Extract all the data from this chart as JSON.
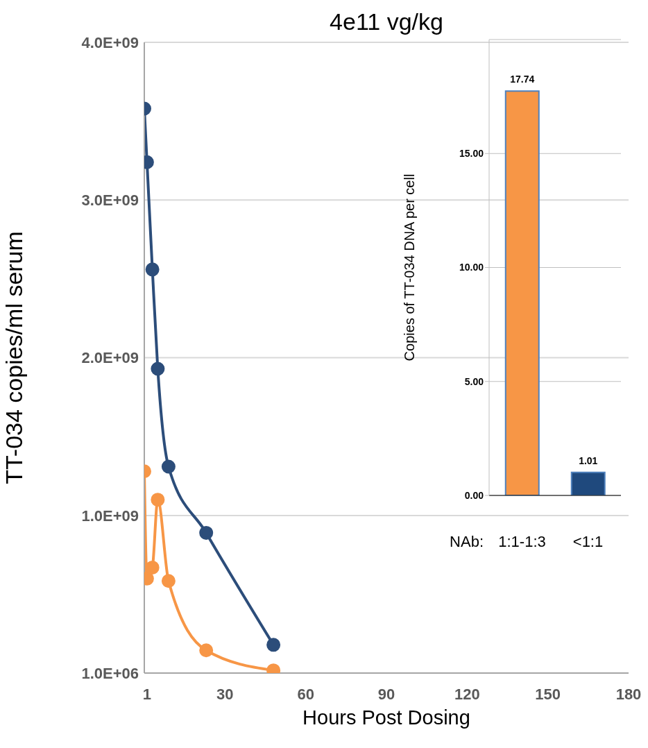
{
  "chart_data": [
    {
      "type": "line",
      "title": "4e11 vg/kg",
      "xlabel": "Hours Post Dosing",
      "ylabel": "TT-034 copies/ml serum",
      "x": [
        0,
        1,
        3,
        5,
        9,
        23,
        48
      ],
      "series": [
        {
          "color": "#2c4d7a",
          "values": [
            3580000000,
            3240000000,
            2560000000,
            1930000000,
            1310000000,
            890000000,
            180000000
          ]
        },
        {
          "color": "#f79646",
          "values": [
            1280000000,
            600000000,
            670000000,
            1100000000,
            585000000,
            145000000,
            18000000
          ]
        }
      ],
      "xlim": [
        0,
        180
      ],
      "xticks": [
        {
          "value": 1,
          "label": "1"
        },
        30,
        60,
        90,
        120,
        150,
        180
      ],
      "ylim": [
        1000000,
        4000000000
      ],
      "yticks": [
        {
          "value": 1000000,
          "label": "1.0E+06"
        },
        {
          "value": 1000000000,
          "label": "1.0E+09"
        },
        {
          "value": 2000000000,
          "label": "2.0E+09"
        },
        {
          "value": 3000000000,
          "label": "3.0E+09"
        },
        {
          "value": 4000000000,
          "label": "4.0E+09"
        }
      ],
      "grid": "y",
      "marker": "circle",
      "line_style": "solid"
    },
    {
      "type": "bar",
      "xlabel": "NAb:",
      "ylabel": "Copies of TT-034 DNA per cell",
      "categories": [
        "1:1-1:3",
        "<1:1"
      ],
      "values": [
        17.74,
        1.01
      ],
      "colors": [
        "#f79646",
        "#1f497d"
      ],
      "ylim": [
        0,
        20
      ],
      "yticks": [
        {
          "value": 0,
          "label": "0.00"
        },
        {
          "value": 5,
          "label": "5.00"
        },
        {
          "value": 10,
          "label": "10.00"
        },
        {
          "value": 15,
          "label": "15.00"
        }
      ],
      "grid": "y",
      "data_labels": true
    }
  ]
}
